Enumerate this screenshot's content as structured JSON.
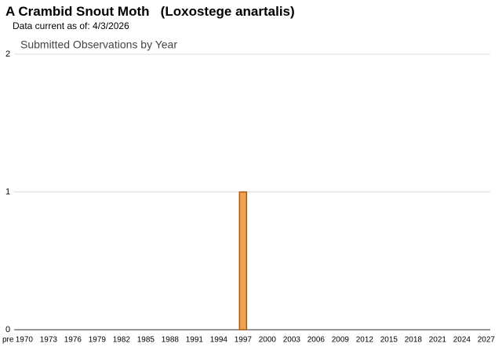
{
  "header": {
    "title": "A Crambid Snout Moth   (Loxostege anartalis)",
    "subtitle": "Data current as of: 4/3/2026"
  },
  "chart_data": {
    "type": "bar",
    "title": "Submitted Observations by Year",
    "categories": [
      "pre",
      null,
      "1970",
      null,
      null,
      "1973",
      null,
      null,
      "1976",
      null,
      null,
      "1979",
      null,
      null,
      "1982",
      null,
      null,
      "1985",
      null,
      null,
      "1988",
      null,
      null,
      "1991",
      null,
      null,
      "1994",
      null,
      null,
      "1997",
      null,
      null,
      "2000",
      null,
      null,
      "2003",
      null,
      null,
      "2006",
      null,
      null,
      "2009",
      null,
      null,
      "2012",
      null,
      null,
      "2015",
      null,
      null,
      "2018",
      null,
      null,
      "2021",
      null,
      null,
      "2024",
      null,
      null,
      "2027"
    ],
    "values": [
      0,
      0,
      0,
      0,
      0,
      0,
      0,
      0,
      0,
      0,
      0,
      0,
      0,
      0,
      0,
      0,
      0,
      0,
      0,
      0,
      0,
      0,
      0,
      0,
      0,
      0,
      0,
      0,
      0,
      1,
      0,
      0,
      0,
      0,
      0,
      0,
      0,
      0,
      0,
      0,
      0,
      0,
      0,
      0,
      0,
      0,
      0,
      0,
      0,
      0,
      0,
      0,
      0,
      0,
      0,
      0,
      0,
      0,
      0,
      0
    ],
    "color": "#f2a24e",
    "ylim": [
      0,
      2
    ],
    "yticks": [
      0,
      1,
      2
    ],
    "grid": true
  }
}
